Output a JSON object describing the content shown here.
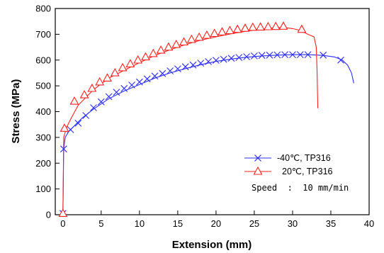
{
  "chart_data": {
    "type": "line",
    "title": "",
    "xlabel": "Extension (mm)",
    "ylabel": "Stress (MPa)",
    "xlim": [
      -1,
      40
    ],
    "ylim": [
      0,
      800
    ],
    "x_ticks": [
      0,
      5,
      10,
      15,
      20,
      25,
      30,
      35,
      40
    ],
    "y_ticks": [
      0,
      100,
      200,
      300,
      400,
      500,
      600,
      700,
      800
    ],
    "x_tick_labels": [
      "0",
      "5",
      "10",
      "15",
      "20",
      "25",
      "30",
      "35",
      "40"
    ],
    "y_tick_labels": [
      "0",
      "100",
      "200",
      "300",
      "400",
      "500",
      "600",
      "700",
      "800"
    ],
    "grid": false,
    "legend_position": "bottom-right",
    "note": "Speed  :  10 mm/min",
    "series": [
      {
        "name": "-40℃,  TP316",
        "color": "#2c2cff",
        "marker": "x",
        "curve": [
          [
            0,
            0
          ],
          [
            0.1,
            255
          ],
          [
            0.3,
            300
          ],
          [
            0.8,
            325
          ],
          [
            1.5,
            345
          ],
          [
            2.5,
            375
          ],
          [
            4,
            410
          ],
          [
            6,
            450
          ],
          [
            8,
            480
          ],
          [
            10,
            505
          ],
          [
            12,
            530
          ],
          [
            14,
            550
          ],
          [
            16,
            567
          ],
          [
            18,
            582
          ],
          [
            20,
            595
          ],
          [
            22,
            604
          ],
          [
            24,
            611
          ],
          [
            26,
            616
          ],
          [
            28,
            619
          ],
          [
            30,
            621
          ],
          [
            32,
            621
          ],
          [
            34,
            618
          ],
          [
            35.5,
            612
          ],
          [
            36.5,
            600
          ],
          [
            37.2,
            580
          ],
          [
            37.7,
            550
          ],
          [
            38,
            510
          ]
        ],
        "markers": [
          [
            0,
            5
          ],
          [
            0.1,
            255
          ],
          [
            1,
            330
          ],
          [
            2,
            355
          ],
          [
            3,
            385
          ],
          [
            4,
            415
          ],
          [
            5,
            438
          ],
          [
            6,
            458
          ],
          [
            7,
            475
          ],
          [
            8,
            490
          ],
          [
            9,
            503
          ],
          [
            10,
            515
          ],
          [
            11,
            527
          ],
          [
            12,
            538
          ],
          [
            13,
            548
          ],
          [
            14,
            558
          ],
          [
            15,
            566
          ],
          [
            16,
            574
          ],
          [
            17,
            581
          ],
          [
            18,
            588
          ],
          [
            19,
            594
          ],
          [
            20,
            599
          ],
          [
            21,
            603
          ],
          [
            22,
            607
          ],
          [
            23,
            610
          ],
          [
            24,
            613
          ],
          [
            25,
            616
          ],
          [
            26,
            618
          ],
          [
            27,
            619
          ],
          [
            28,
            620
          ],
          [
            29,
            621
          ],
          [
            30,
            621
          ],
          [
            31,
            621
          ],
          [
            32,
            621
          ],
          [
            34,
            619
          ],
          [
            36.3,
            600
          ]
        ]
      },
      {
        "name": "20℃,  TP316",
        "color": "#ff2020",
        "marker": "triangle",
        "curve": [
          [
            0,
            0
          ],
          [
            0.1,
            300
          ],
          [
            0.5,
            340
          ],
          [
            1,
            370
          ],
          [
            2,
            425
          ],
          [
            3,
            455
          ],
          [
            4,
            485
          ],
          [
            6,
            530
          ],
          [
            8,
            560
          ],
          [
            10,
            590
          ],
          [
            12,
            618
          ],
          [
            14,
            640
          ],
          [
            16,
            660
          ],
          [
            18,
            677
          ],
          [
            20,
            690
          ],
          [
            22,
            702
          ],
          [
            24,
            712
          ],
          [
            26,
            720
          ],
          [
            28,
            726
          ],
          [
            29,
            726
          ],
          [
            30,
            722
          ],
          [
            31,
            715
          ],
          [
            32,
            700
          ],
          [
            32.8,
            690
          ],
          [
            33.1,
            650
          ],
          [
            33.2,
            560
          ],
          [
            33.3,
            413
          ]
        ],
        "markers": [
          [
            0,
            5
          ],
          [
            0.2,
            335
          ],
          [
            1.5,
            440
          ],
          [
            2.8,
            465
          ],
          [
            3.8,
            490
          ],
          [
            4.8,
            515
          ],
          [
            5.8,
            530
          ],
          [
            6.8,
            550
          ],
          [
            7.8,
            570
          ],
          [
            8.8,
            585
          ],
          [
            9.8,
            600
          ],
          [
            10.8,
            612
          ],
          [
            11.8,
            625
          ],
          [
            12.8,
            638
          ],
          [
            13.8,
            650
          ],
          [
            14.8,
            660
          ],
          [
            15.8,
            670
          ],
          [
            16.8,
            680
          ],
          [
            17.8,
            688
          ],
          [
            18.8,
            696
          ],
          [
            19.8,
            703
          ],
          [
            20.8,
            709
          ],
          [
            21.8,
            714
          ],
          [
            22.8,
            719
          ],
          [
            23.8,
            723
          ],
          [
            24.8,
            727
          ],
          [
            25.8,
            728
          ],
          [
            26.8,
            729
          ],
          [
            27.8,
            730
          ],
          [
            28.8,
            731
          ],
          [
            31.2,
            719
          ]
        ]
      }
    ]
  }
}
